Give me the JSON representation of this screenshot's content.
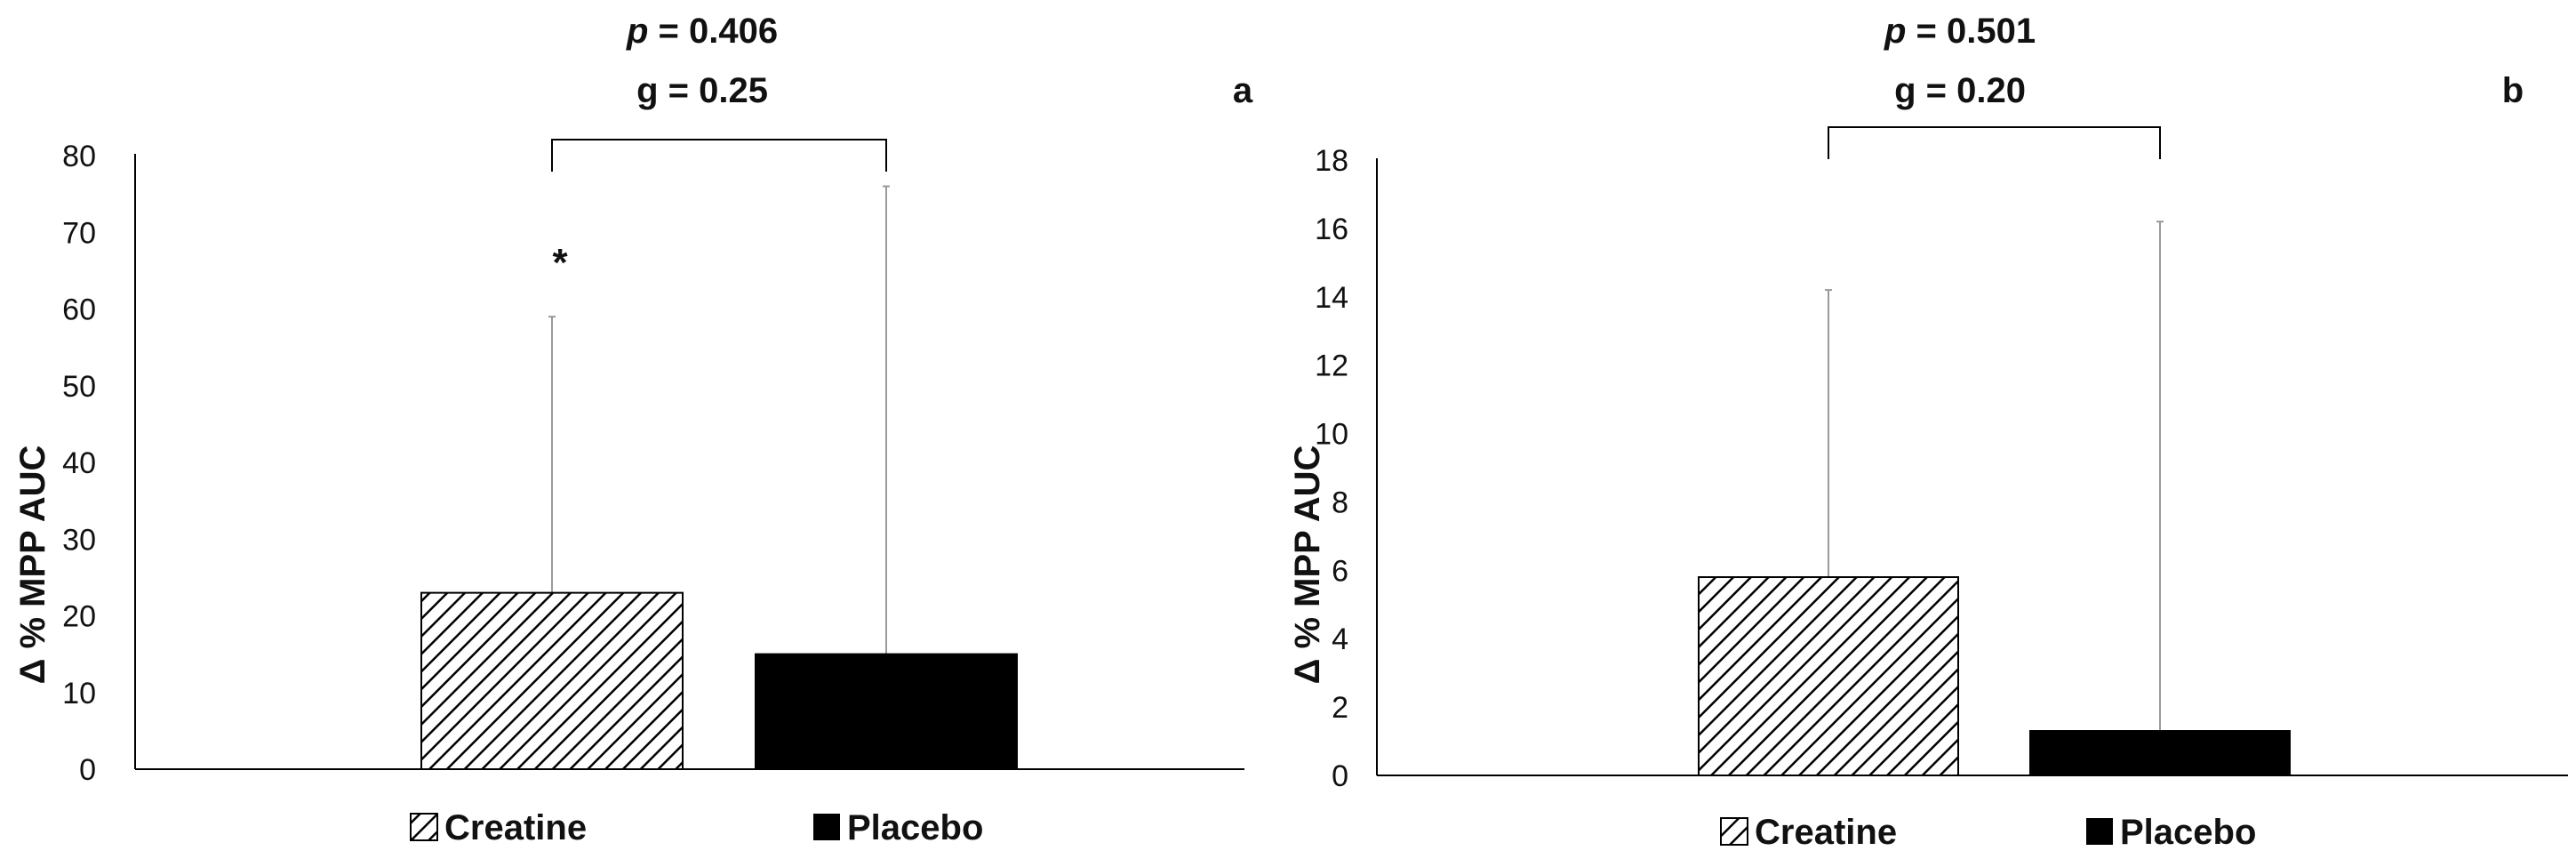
{
  "chart_data": [
    {
      "type": "bar",
      "panel_label": "a",
      "ylabel": "Δ % MPP AUC",
      "ylim": [
        0,
        80
      ],
      "yticks": [
        0,
        10,
        20,
        30,
        40,
        50,
        60,
        70,
        80
      ],
      "categories": [
        "Creatine",
        "Placebo"
      ],
      "values": [
        23,
        15
      ],
      "error_upper": [
        59,
        76
      ],
      "significance_marker": "*",
      "comparison": {
        "p_label": "p",
        "p_value": " = 0.406",
        "g_text": "g = 0.25"
      },
      "legend": [
        "Creatine",
        "Placebo"
      ],
      "grid": false
    },
    {
      "type": "bar",
      "panel_label": "b",
      "ylabel": "Δ % MPP AUC",
      "ylim": [
        0,
        18
      ],
      "yticks": [
        0,
        2,
        4,
        6,
        8,
        10,
        12,
        14,
        16,
        18
      ],
      "categories": [
        "Creatine",
        "Placebo"
      ],
      "values": [
        5.8,
        1.3
      ],
      "error_upper": [
        14.2,
        16.2
      ],
      "comparison": {
        "p_label": "p",
        "p_value": " = 0.501",
        "g_text": "g = 0.20"
      },
      "legend": [
        "Creatine",
        "Placebo"
      ],
      "grid": false
    }
  ],
  "colors": {
    "axis": "#000000",
    "placebo_fill": "#000000",
    "creatine_hatch": "#000000",
    "error_bar": "#9a9a9a"
  }
}
